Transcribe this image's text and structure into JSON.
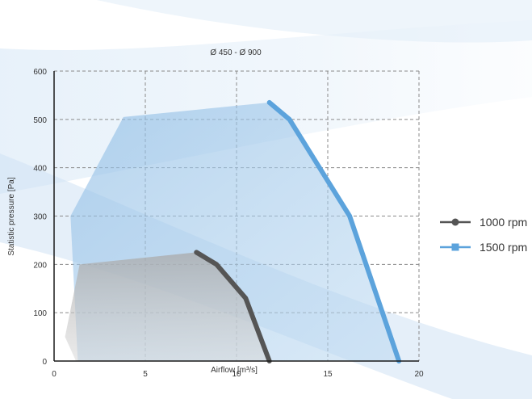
{
  "chart_data": {
    "type": "area",
    "title": "Ø 450 - Ø 900",
    "xlabel": "Airflow [m³/s]",
    "ylabel": "Statistic pressure [Pa]",
    "xlim": [
      0,
      20
    ],
    "ylim": [
      0,
      600
    ],
    "x_ticks": [
      0,
      5,
      10,
      15,
      20
    ],
    "y_ticks": [
      0,
      100,
      200,
      300,
      400,
      500,
      600
    ],
    "grid": true,
    "legend_position": "right",
    "series": [
      {
        "name": "1000 rpm",
        "color": "#555555",
        "marker": "circle",
        "curve": [
          {
            "x": 7.8,
            "y": 225
          },
          {
            "x": 8.9,
            "y": 200
          },
          {
            "x": 10.5,
            "y": 130
          },
          {
            "x": 11.8,
            "y": 0
          }
        ],
        "area": [
          {
            "x": 0.6,
            "y": 50
          },
          {
            "x": 1.4,
            "y": 200
          },
          {
            "x": 7.8,
            "y": 225
          },
          {
            "x": 8.9,
            "y": 200
          },
          {
            "x": 10.5,
            "y": 130
          },
          {
            "x": 11.8,
            "y": 0
          },
          {
            "x": 1.2,
            "y": 0
          }
        ]
      },
      {
        "name": "1500 rpm",
        "color": "#5ca3dc",
        "marker": "square",
        "curve": [
          {
            "x": 11.8,
            "y": 535
          },
          {
            "x": 12.9,
            "y": 500
          },
          {
            "x": 16.2,
            "y": 300
          },
          {
            "x": 18.9,
            "y": 0
          }
        ],
        "area": [
          {
            "x": 0.9,
            "y": 300
          },
          {
            "x": 3.8,
            "y": 505
          },
          {
            "x": 11.8,
            "y": 535
          },
          {
            "x": 12.9,
            "y": 500
          },
          {
            "x": 16.2,
            "y": 300
          },
          {
            "x": 18.9,
            "y": 0
          },
          {
            "x": 1.3,
            "y": 0
          }
        ]
      }
    ]
  }
}
